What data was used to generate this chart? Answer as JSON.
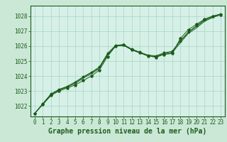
{
  "background_color": "#cbe8d6",
  "plot_bg_color": "#d6f0e8",
  "grid_color": "#a8d4c0",
  "line_color": "#1a5c1a",
  "marker_color": "#1a5c1a",
  "text_color": "#1a5c1a",
  "xlabel": "Graphe pression niveau de la mer (hPa)",
  "xlim": [
    -0.5,
    23.5
  ],
  "ylim": [
    1021.3,
    1028.7
  ],
  "yticks": [
    1022,
    1023,
    1024,
    1025,
    1026,
    1027,
    1028
  ],
  "xticks": [
    0,
    1,
    2,
    3,
    4,
    5,
    6,
    7,
    8,
    9,
    10,
    11,
    12,
    13,
    14,
    15,
    16,
    17,
    18,
    19,
    20,
    21,
    22,
    23
  ],
  "series": [
    [
      1021.5,
      1022.1,
      1022.7,
      1023.0,
      1023.2,
      1023.4,
      1023.7,
      1024.0,
      1024.4,
      1025.3,
      1026.0,
      1026.1,
      1025.75,
      1025.55,
      1025.35,
      1025.25,
      1025.45,
      1025.5,
      1026.5,
      1027.1,
      1027.45,
      1027.8,
      1028.0,
      1028.1
    ],
    [
      1021.5,
      1022.1,
      1022.7,
      1023.05,
      1023.25,
      1023.5,
      1023.85,
      1024.15,
      1024.5,
      1025.4,
      1026.0,
      1026.05,
      1025.75,
      1025.55,
      1025.35,
      1025.3,
      1025.45,
      1025.55,
      1026.2,
      1026.85,
      1027.2,
      1027.65,
      1027.9,
      1028.1
    ],
    [
      1021.5,
      1022.15,
      1022.75,
      1023.1,
      1023.3,
      1023.55,
      1023.9,
      1024.2,
      1024.55,
      1025.45,
      1026.0,
      1026.05,
      1025.75,
      1025.55,
      1025.35,
      1025.3,
      1025.5,
      1025.6,
      1026.3,
      1026.9,
      1027.3,
      1027.7,
      1027.95,
      1028.1
    ],
    [
      1021.5,
      1022.15,
      1022.8,
      1023.1,
      1023.3,
      1023.6,
      1023.95,
      1024.25,
      1024.6,
      1025.5,
      1026.05,
      1026.1,
      1025.8,
      1025.6,
      1025.4,
      1025.35,
      1025.55,
      1025.65,
      1026.35,
      1026.95,
      1027.35,
      1027.75,
      1028.0,
      1028.15
    ]
  ],
  "fontsize_label": 7,
  "fontsize_tick": 5.5
}
